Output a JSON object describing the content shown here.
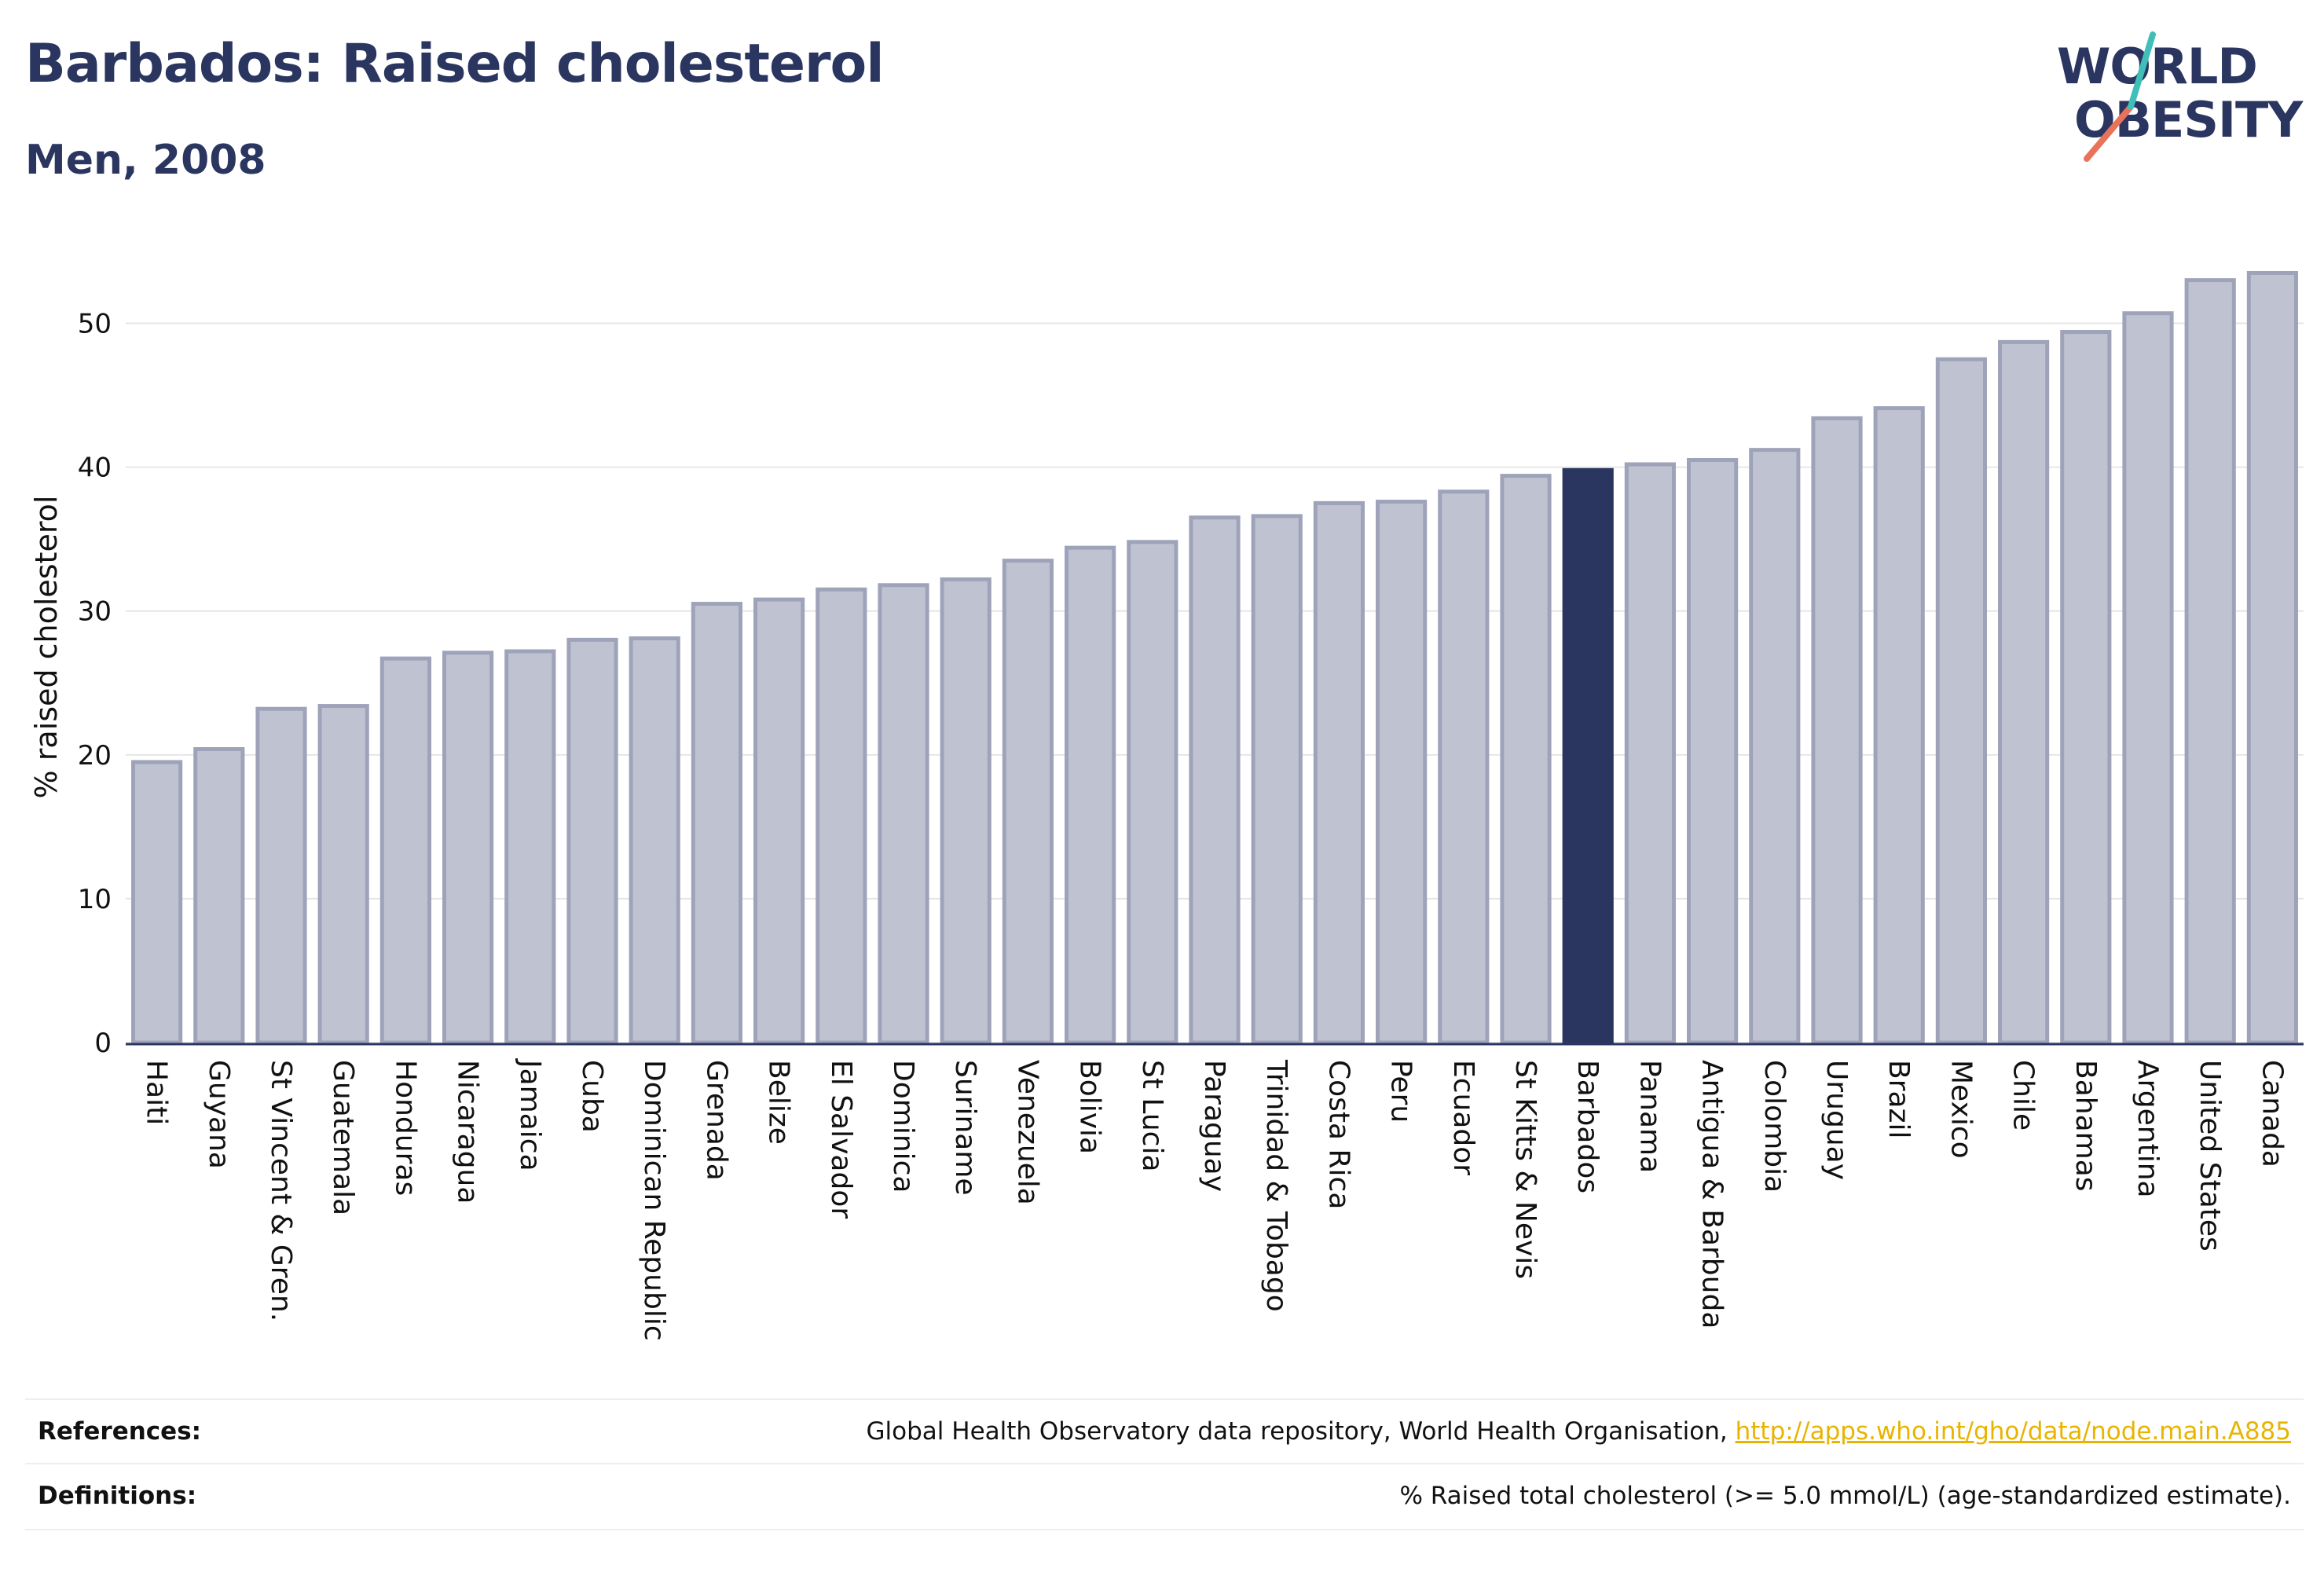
{
  "title": "Barbados: Raised cholesterol",
  "subtitle": "Men, 2008",
  "logo": {
    "line1": "WORLD",
    "line2": "OBESITY"
  },
  "colors": {
    "bar": "#bfc3d1",
    "bar_stroke": "#9ea3ba",
    "highlight": "#2a3560",
    "grid": "#e6e6e6",
    "axis": "#2a3560"
  },
  "chart_data": {
    "type": "bar",
    "title": "Barbados: Raised cholesterol",
    "subtitle": "Men, 2008",
    "xlabel": "",
    "ylabel": "% raised cholesterol",
    "ylim": [
      0,
      55
    ],
    "yticks": [
      0,
      10,
      20,
      30,
      40,
      50
    ],
    "grid": true,
    "highlight": "Barbados",
    "categories": [
      "Haiti",
      "Guyana",
      "St Vincent & Gren.",
      "Guatemala",
      "Honduras",
      "Nicaragua",
      "Jamaica",
      "Cuba",
      "Dominican Republic",
      "Grenada",
      "Belize",
      "El Salvador",
      "Dominica",
      "Suriname",
      "Venezuela",
      "Bolivia",
      "St Lucia",
      "Paraguay",
      "Trinidad & Tobago",
      "Costa Rica",
      "Peru",
      "Ecuador",
      "St Kitts & Nevis",
      "Barbados",
      "Panama",
      "Antigua & Barbuda",
      "Colombia",
      "Uruguay",
      "Brazil",
      "Mexico",
      "Chile",
      "Bahamas",
      "Argentina",
      "United States",
      "Canada"
    ],
    "values": [
      19.5,
      20.4,
      23.2,
      23.4,
      26.7,
      27.1,
      27.2,
      28.0,
      28.1,
      30.5,
      30.8,
      31.5,
      31.8,
      32.2,
      33.5,
      34.4,
      34.8,
      36.5,
      36.6,
      37.5,
      37.6,
      38.3,
      39.4,
      39.8,
      40.2,
      40.5,
      41.2,
      43.4,
      44.1,
      47.5,
      48.7,
      49.4,
      50.7,
      53.0,
      53.5
    ]
  },
  "footer": {
    "references_label": "References:",
    "references_text": "Global Health Observatory data repository, World Health Organisation, ",
    "references_link": "http://apps.who.int/gho/data/node.main.A885",
    "definitions_label": "Definitions:",
    "definitions_text": "% Raised total cholesterol (>= 5.0 mmol/L) (age-standardized estimate)."
  }
}
